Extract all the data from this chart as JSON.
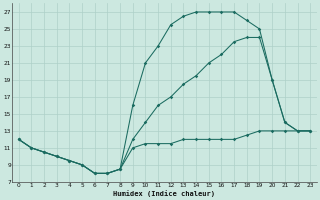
{
  "xlabel": "Humidex (Indice chaleur)",
  "bg_color": "#cce8e0",
  "line_color": "#1a6b60",
  "grid_color": "#aed0c8",
  "xlim": [
    -0.5,
    23.5
  ],
  "ylim": [
    7,
    28
  ],
  "xticks": [
    0,
    1,
    2,
    3,
    4,
    5,
    6,
    7,
    8,
    9,
    10,
    11,
    12,
    13,
    14,
    15,
    16,
    17,
    18,
    19,
    20,
    21,
    22,
    23
  ],
  "yticks": [
    7,
    9,
    11,
    13,
    15,
    17,
    19,
    21,
    23,
    25,
    27
  ],
  "curve_bottom_x": [
    0,
    1,
    2,
    3,
    4,
    5,
    6,
    7,
    8,
    9,
    10,
    11,
    12,
    13,
    14,
    15,
    16,
    17,
    18,
    19,
    20,
    21,
    22,
    23
  ],
  "curve_bottom_y": [
    12,
    11,
    10.5,
    10,
    9.5,
    9,
    8,
    8,
    8.5,
    11,
    11.5,
    11.5,
    11.5,
    12,
    12,
    12,
    12,
    12,
    12.5,
    13,
    13,
    13,
    13,
    13
  ],
  "curve_top_x": [
    0,
    1,
    2,
    3,
    4,
    5,
    6,
    7,
    8,
    9,
    10,
    11,
    12,
    13,
    14,
    15,
    16,
    17,
    18,
    19,
    20,
    21,
    22,
    23
  ],
  "curve_top_y": [
    12,
    11,
    10.5,
    10,
    9.5,
    9,
    8,
    8,
    8.5,
    16,
    21,
    23,
    25.5,
    26.5,
    27,
    27,
    27,
    27,
    26,
    25,
    19,
    14,
    13,
    13
  ],
  "curve_mid_x": [
    0,
    1,
    2,
    3,
    4,
    5,
    6,
    7,
    8,
    9,
    10,
    11,
    12,
    13,
    14,
    15,
    16,
    17,
    18,
    19,
    20,
    21,
    22,
    23
  ],
  "curve_mid_y": [
    12,
    11,
    10.5,
    10,
    9.5,
    9,
    8,
    8,
    8.5,
    12,
    14,
    16,
    17,
    18.5,
    19.5,
    21,
    22,
    23.5,
    24,
    24,
    19,
    14,
    13,
    13
  ]
}
